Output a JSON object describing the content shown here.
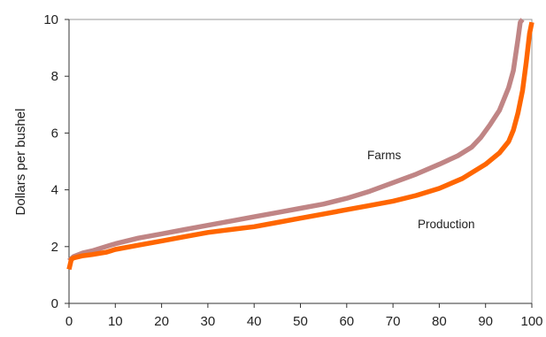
{
  "chart_data": {
    "type": "line",
    "title": "",
    "xlabel": "",
    "ylabel": "Dollars per bushel",
    "xlim": [
      0,
      100
    ],
    "ylim": [
      0,
      10
    ],
    "x_ticks": [
      "0",
      "10",
      "20",
      "30",
      "40",
      "50",
      "60",
      "70",
      "80",
      "90",
      "100"
    ],
    "y_ticks": [
      "0",
      "2",
      "4",
      "6",
      "8",
      "10"
    ],
    "grid": false,
    "legend": "none",
    "series": [
      {
        "name": "Farms",
        "color": "#c08585",
        "x": [
          0,
          1,
          3,
          5,
          8,
          10,
          15,
          20,
          25,
          30,
          35,
          40,
          45,
          50,
          55,
          60,
          65,
          70,
          75,
          80,
          84,
          87,
          89,
          91,
          93,
          94,
          95,
          96,
          97,
          97.5,
          98
        ],
        "y": [
          1.5,
          1.65,
          1.78,
          1.85,
          2.0,
          2.1,
          2.3,
          2.45,
          2.6,
          2.75,
          2.9,
          3.05,
          3.2,
          3.35,
          3.5,
          3.7,
          3.95,
          4.25,
          4.55,
          4.9,
          5.2,
          5.5,
          5.85,
          6.3,
          6.8,
          7.2,
          7.6,
          8.2,
          9.3,
          9.9,
          10.0
        ]
      },
      {
        "name": "Production",
        "color": "#ff6600",
        "x": [
          0,
          0.5,
          1,
          3,
          5,
          8,
          10,
          15,
          20,
          25,
          30,
          35,
          40,
          45,
          50,
          55,
          60,
          65,
          70,
          75,
          80,
          85,
          90,
          93,
          95,
          96,
          97,
          98,
          98.8,
          99.5,
          100
        ],
        "y": [
          1.2,
          1.55,
          1.6,
          1.68,
          1.72,
          1.8,
          1.9,
          2.05,
          2.2,
          2.35,
          2.5,
          2.6,
          2.7,
          2.85,
          3.0,
          3.15,
          3.3,
          3.45,
          3.6,
          3.8,
          4.05,
          4.4,
          4.9,
          5.3,
          5.7,
          6.1,
          6.7,
          7.5,
          8.5,
          9.5,
          9.9
        ]
      }
    ],
    "annotations": [
      {
        "text": "Farms",
        "series": "Farms"
      },
      {
        "text": "Production",
        "series": "Production"
      }
    ]
  }
}
